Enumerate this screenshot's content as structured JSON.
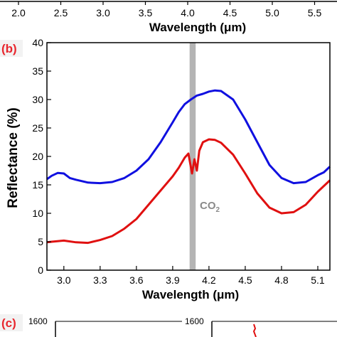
{
  "top_strip": {
    "tick_labels": [
      "2.0",
      "2.5",
      "3.0",
      "3.5",
      "4.0",
      "4.5",
      "5.0",
      "5.5"
    ],
    "xlabel": "Wavelength (μm)"
  },
  "panel_b": {
    "tag": "(b)",
    "band_label": "CO",
    "band_label_sub": "2",
    "band_color": "#b4b4b4"
  },
  "panel_c": {
    "tag": "(c)",
    "left_tick": "1600",
    "right_tick": "1600"
  },
  "chart_data": [
    {
      "type": "line",
      "panel": "(b)",
      "xlabel": "Wavelength (μm)",
      "ylabel": "Reflectance (%)",
      "xlim": [
        2.86,
        5.2
      ],
      "ylim": [
        0,
        40
      ],
      "xticks": [
        3.0,
        3.3,
        3.6,
        3.9,
        4.2,
        4.5,
        4.8,
        5.1
      ],
      "xtick_labels": [
        "3.0",
        "3.3",
        "3.6",
        "3.9",
        "4.2",
        "4.5",
        "4.8",
        "5.1"
      ],
      "yticks": [
        0,
        5,
        10,
        15,
        20,
        25,
        30,
        35,
        40
      ],
      "ytick_labels": [
        "0",
        "5",
        "10",
        "15",
        "20",
        "25",
        "30",
        "35",
        "40"
      ],
      "shaded_band": {
        "x": [
          4.04,
          4.09
        ],
        "label": "CO2"
      },
      "series": [
        {
          "color": "#1010e0",
          "x": [
            2.86,
            2.9,
            2.95,
            3.0,
            3.05,
            3.1,
            3.2,
            3.3,
            3.4,
            3.5,
            3.6,
            3.7,
            3.8,
            3.9,
            3.95,
            4.0,
            4.05,
            4.1,
            4.15,
            4.2,
            4.25,
            4.3,
            4.4,
            4.5,
            4.6,
            4.7,
            4.8,
            4.9,
            5.0,
            5.1,
            5.15,
            5.2
          ],
          "y": [
            16.0,
            16.6,
            17.1,
            17.0,
            16.2,
            15.9,
            15.4,
            15.3,
            15.5,
            16.2,
            17.5,
            19.5,
            22.5,
            26.0,
            27.8,
            29.2,
            30.0,
            30.7,
            31.0,
            31.4,
            31.6,
            31.5,
            30.0,
            26.5,
            22.5,
            18.5,
            16.2,
            15.3,
            15.5,
            16.7,
            17.2,
            18.2
          ]
        },
        {
          "color": "#e01010",
          "x": [
            2.86,
            2.9,
            3.0,
            3.1,
            3.2,
            3.3,
            3.4,
            3.5,
            3.6,
            3.7,
            3.8,
            3.9,
            3.95,
            4.0,
            4.03,
            4.06,
            4.08,
            4.1,
            4.12,
            4.15,
            4.2,
            4.25,
            4.3,
            4.4,
            4.5,
            4.6,
            4.7,
            4.8,
            4.9,
            5.0,
            5.1,
            5.2
          ],
          "y": [
            4.9,
            5.0,
            5.2,
            4.9,
            4.8,
            5.3,
            6.0,
            7.3,
            9.0,
            11.5,
            14.0,
            16.5,
            18.0,
            19.8,
            20.5,
            17.0,
            19.5,
            17.5,
            21.0,
            22.5,
            23.0,
            22.9,
            22.4,
            20.3,
            17.0,
            13.5,
            11.0,
            10.0,
            10.2,
            11.5,
            13.8,
            15.8
          ]
        }
      ]
    }
  ]
}
